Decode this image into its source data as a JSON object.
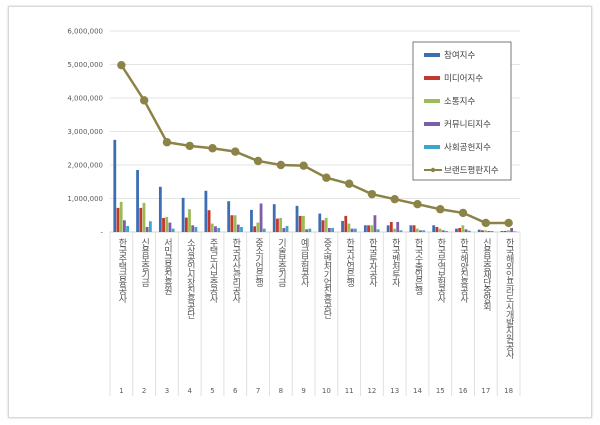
{
  "chart_data": {
    "type": "bar+line",
    "title": "",
    "xlabel": "",
    "ylabel": "",
    "ylim": [
      0,
      6000000
    ],
    "yticks": [
      "-",
      "1,000,000",
      "2,000,000",
      "3,000,000",
      "4,000,000",
      "5,000,000",
      "6,000,000"
    ],
    "grid": true,
    "legend_position": "top-right",
    "categories": [
      "한국주택금융공사",
      "신용보증기금",
      "서민금융진흥원",
      "소상공인시장진흥공단",
      "주택도시보증공사",
      "한국자산관리공사",
      "중소기업은행",
      "기술보증기금",
      "예금보험공사",
      "중소벤처기업진흥공단",
      "한국산업은행",
      "한국투자공사",
      "한국벤처투자",
      "한국수출입은행",
      "한국무역보험공사",
      "한국해양진흥공사",
      "신용보증재단중앙회",
      "한국해외인프라도시개발지원공사"
    ],
    "ranks": [
      "1",
      "2",
      "3",
      "4",
      "5",
      "6",
      "7",
      "8",
      "9",
      "10",
      "11",
      "12",
      "13",
      "14",
      "15",
      "16",
      "17",
      "18"
    ],
    "series": [
      {
        "name": "참여지수",
        "type": "bar",
        "color": "#3d6eb4",
        "values": [
          2750000,
          1850000,
          1350000,
          1020000,
          1230000,
          920000,
          660000,
          830000,
          780000,
          550000,
          330000,
          200000,
          200000,
          200000,
          200000,
          100000,
          70000,
          30000
        ]
      },
      {
        "name": "미디어지수",
        "type": "bar",
        "color": "#c0392b",
        "values": [
          720000,
          720000,
          420000,
          430000,
          650000,
          500000,
          170000,
          400000,
          480000,
          350000,
          480000,
          200000,
          300000,
          200000,
          150000,
          120000,
          50000,
          30000
        ]
      },
      {
        "name": "소통지수",
        "type": "bar",
        "color": "#9bbb59",
        "values": [
          900000,
          870000,
          450000,
          680000,
          250000,
          500000,
          280000,
          420000,
          480000,
          420000,
          250000,
          200000,
          100000,
          100000,
          100000,
          200000,
          50000,
          50000
        ]
      },
      {
        "name": "커뮤니티지수",
        "type": "bar",
        "color": "#7e5ca8",
        "values": [
          350000,
          150000,
          280000,
          200000,
          170000,
          220000,
          850000,
          120000,
          80000,
          120000,
          100000,
          500000,
          300000,
          50000,
          50000,
          80000,
          30000,
          120000
        ]
      },
      {
        "name": "사회공헌지수",
        "type": "bar",
        "color": "#3aa6c9",
        "values": [
          180000,
          320000,
          100000,
          150000,
          120000,
          150000,
          100000,
          180000,
          100000,
          120000,
          100000,
          80000,
          50000,
          50000,
          30000,
          40000,
          30000,
          20000
        ]
      },
      {
        "name": "브랜드평판지수",
        "type": "line",
        "color": "#8c8346",
        "values": [
          4980000,
          3930000,
          2680000,
          2570000,
          2500000,
          2400000,
          2120000,
          2000000,
          1980000,
          1620000,
          1440000,
          1130000,
          980000,
          830000,
          680000,
          570000,
          270000,
          270000
        ]
      }
    ]
  }
}
